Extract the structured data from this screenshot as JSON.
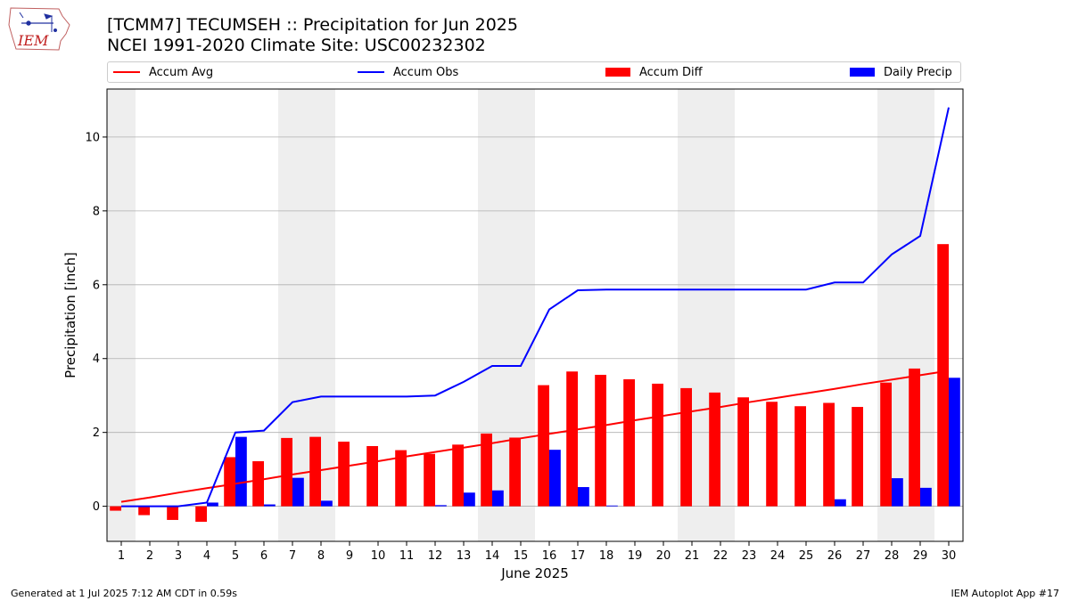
{
  "header": {
    "title_line1": "[TCMM7] TECUMSEH :: Precipitation for Jun 2025",
    "title_line2": "NCEI 1991-2020 Climate Site: USC00232302",
    "logo_text": "IEM"
  },
  "footer": {
    "generated": "Generated at 1 Jul 2025 7:12 AM CDT in 0.59s",
    "app": "IEM Autoplot App #17"
  },
  "colors": {
    "accum_avg": "#ff0000",
    "accum_obs": "#0000ff",
    "accum_diff": "#ff0000",
    "daily_precip": "#0000ff",
    "weekend_shade": "#eeeeee",
    "grid": "#b0b0b0"
  },
  "chart_data": {
    "type": "bar",
    "xlabel": "June 2025",
    "ylabel": "Precipitation [inch]",
    "ylim": [
      -0.95,
      11.3
    ],
    "xlim": [
      0.5,
      30.5
    ],
    "yticks": [
      0,
      2,
      4,
      6,
      8,
      10
    ],
    "grid": true,
    "legend_placement": "top",
    "x": [
      1,
      2,
      3,
      4,
      5,
      6,
      7,
      8,
      9,
      10,
      11,
      12,
      13,
      14,
      15,
      16,
      17,
      18,
      19,
      20,
      21,
      22,
      23,
      24,
      25,
      26,
      27,
      28,
      29,
      30
    ],
    "weekend_days": [
      1,
      7,
      8,
      14,
      15,
      21,
      22,
      28,
      29
    ],
    "series": [
      {
        "name": "Accum Avg",
        "kind": "line",
        "values": [
          0.12,
          0.24,
          0.37,
          0.49,
          0.61,
          0.73,
          0.86,
          0.98,
          1.1,
          1.22,
          1.35,
          1.47,
          1.59,
          1.71,
          1.84,
          1.96,
          2.08,
          2.2,
          2.33,
          2.45,
          2.57,
          2.69,
          2.82,
          2.94,
          3.06,
          3.18,
          3.31,
          3.43,
          3.55,
          3.67
        ]
      },
      {
        "name": "Accum Obs",
        "kind": "line",
        "values": [
          0.0,
          0.0,
          0.0,
          0.1,
          2.0,
          2.05,
          2.82,
          2.97,
          2.97,
          2.97,
          2.97,
          3.0,
          3.37,
          3.8,
          3.8,
          5.33,
          5.85,
          5.87,
          5.87,
          5.87,
          5.87,
          5.87,
          5.87,
          5.87,
          5.87,
          6.06,
          6.06,
          6.82,
          7.32,
          10.8
        ]
      },
      {
        "name": "Accum Diff",
        "kind": "bar",
        "values": [
          -0.12,
          -0.24,
          -0.37,
          -0.42,
          1.33,
          1.22,
          1.85,
          1.88,
          1.75,
          1.63,
          1.52,
          1.42,
          1.67,
          1.97,
          1.86,
          3.28,
          3.65,
          3.56,
          3.44,
          3.32,
          3.2,
          3.08,
          2.95,
          2.83,
          2.71,
          2.8,
          2.69,
          3.35,
          3.73,
          7.1
        ]
      },
      {
        "name": "Daily Precip",
        "kind": "bar",
        "values": [
          0.0,
          0.0,
          0.0,
          0.1,
          1.88,
          0.05,
          0.77,
          0.15,
          0.0,
          0.0,
          0.0,
          0.03,
          0.37,
          0.43,
          0.0,
          1.53,
          0.52,
          0.02,
          0.0,
          0.0,
          0.0,
          0.0,
          0.0,
          0.0,
          0.0,
          0.19,
          0.0,
          0.76,
          0.5,
          3.48
        ]
      }
    ]
  }
}
